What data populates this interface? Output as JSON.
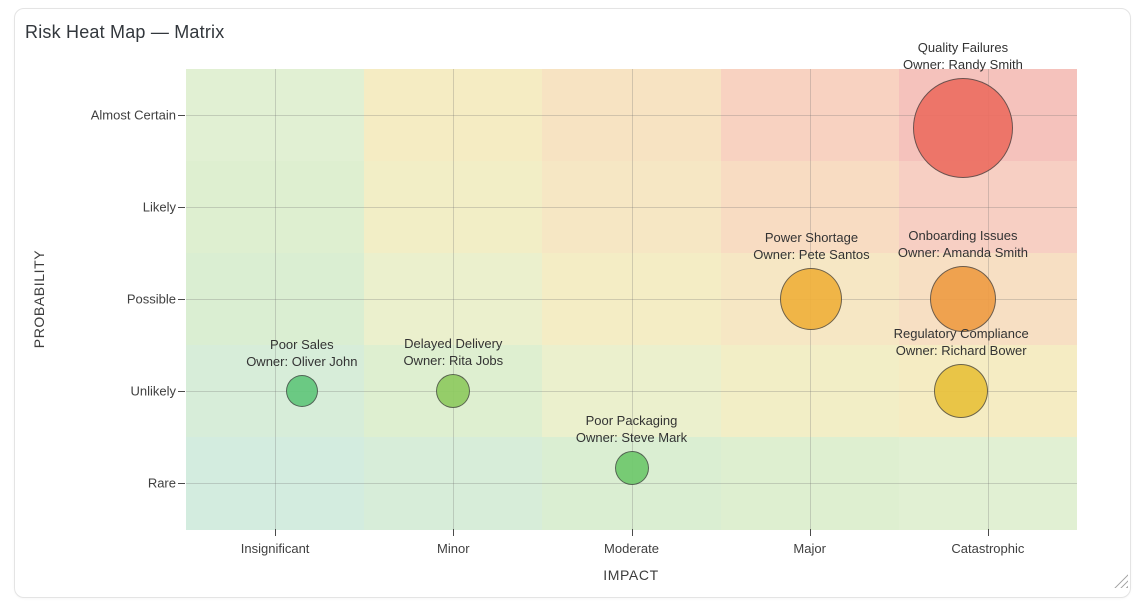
{
  "card": {
    "title": "Risk Heat Map — Matrix"
  },
  "chart_data": {
    "type": "heatmap",
    "subtype": "risk-matrix-bubble",
    "title": "Risk Heat Map — Matrix",
    "xlabel": "IMPACT",
    "ylabel": "PROBABILITY",
    "x_categories": [
      "Insignificant",
      "Minor",
      "Moderate",
      "Major",
      "Catastrophic"
    ],
    "y_categories": [
      "Rare",
      "Unlikely",
      "Possible",
      "Likely",
      "Almost Certain"
    ],
    "grid": true,
    "legend": false,
    "points": [
      {
        "name": "Quality Failures",
        "owner_label": "Owner: Randy Smith",
        "impact": "Catastrophic",
        "probability": "Almost Certain",
        "x": 4.86,
        "y": 4.86,
        "radius": 50,
        "color": "#ed6f62"
      },
      {
        "name": "Onboarding Issues",
        "owner_label": "Owner: Amanda Smith",
        "impact": "Catastrophic",
        "probability": "Possible",
        "x": 4.86,
        "y": 3.0,
        "radius": 33,
        "color": "#ef9d46"
      },
      {
        "name": "Power Shortage",
        "owner_label": "Owner: Pete Santos",
        "impact": "Major",
        "probability": "Possible",
        "x": 4.01,
        "y": 3.0,
        "radius": 31,
        "color": "#f0b13d"
      },
      {
        "name": "Regulatory Compliance",
        "owner_label": "Owner: Richard Bower",
        "impact": "Catastrophic",
        "probability": "Unlikely",
        "x": 4.85,
        "y": 2.0,
        "radius": 27,
        "color": "#e9c23d"
      },
      {
        "name": "Poor Sales",
        "owner_label": "Owner: Oliver John",
        "impact": "Insignificant",
        "probability": "Unlikely",
        "x": 1.15,
        "y": 2.0,
        "radius": 16,
        "color": "#62c77c"
      },
      {
        "name": "Delayed Delivery",
        "owner_label": "Owner: Rita Jobs",
        "impact": "Minor",
        "probability": "Unlikely",
        "x": 2.0,
        "y": 2.0,
        "radius": 17,
        "color": "#8fcb61"
      },
      {
        "name": "Poor Packaging",
        "owner_label": "Owner: Steve Mark",
        "impact": "Moderate",
        "probability": "Rare",
        "x": 3.0,
        "y": 1.16,
        "radius": 17,
        "color": "#6fc96d"
      }
    ],
    "heat_cell_colors_rows_top_to_bottom": [
      [
        "#e1f0d3",
        "#f5ecc3",
        "#f7e3c2",
        "#f8d2c1",
        "#f5c2bc"
      ],
      [
        "#deefd0",
        "#f2eec6",
        "#f6e7c4",
        "#f8dcc2",
        "#f7cfc3"
      ],
      [
        "#daeed2",
        "#ebf0cd",
        "#f4edc5",
        "#f6e7c4",
        "#f7dfc3"
      ],
      [
        "#d7edd9",
        "#deefd0",
        "#ebf0cd",
        "#f2eec6",
        "#f5ecc3"
      ],
      [
        "#d3ecdf",
        "#d7edd9",
        "#daeed2",
        "#deefd0",
        "#e1f0d3"
      ]
    ]
  },
  "colors": {
    "grid_line": "rgba(110,110,110,0.28)",
    "bubble_stroke": "rgba(62,62,62,0.8)",
    "tick": "#4a4a4a",
    "label_text": "#333333",
    "title_text": "#32373c",
    "card_border": "#e4e4e4"
  }
}
